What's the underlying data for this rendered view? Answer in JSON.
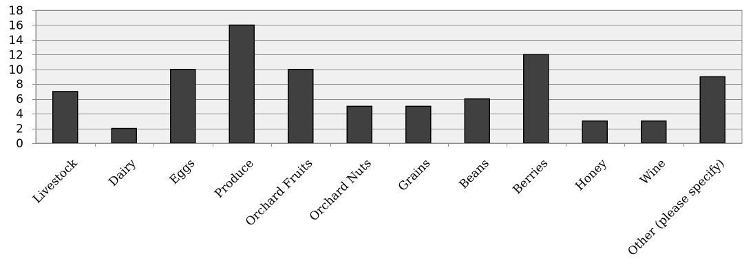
{
  "chart_data": {
    "type": "bar",
    "categories": [
      "Livestock",
      "Dairy",
      "Eggs",
      "Produce",
      "Orchard Fruits",
      "Orchard Nuts",
      "Grains",
      "Beans",
      "Berries",
      "Honey",
      "Wine",
      "Other (please specify)"
    ],
    "values": [
      7,
      2,
      10,
      16,
      10,
      5,
      5,
      6,
      12,
      3,
      3,
      9
    ],
    "title": "",
    "xlabel": "",
    "ylabel": "",
    "ylim": [
      0,
      18
    ],
    "yticks": [
      0,
      2,
      4,
      6,
      8,
      10,
      12,
      14,
      16,
      18
    ],
    "grid": true,
    "colors": {
      "bar": "#404040",
      "bar_outline": "#000000",
      "plot_bg": "#f0f0f0",
      "grid": "#8c8c8c"
    }
  }
}
